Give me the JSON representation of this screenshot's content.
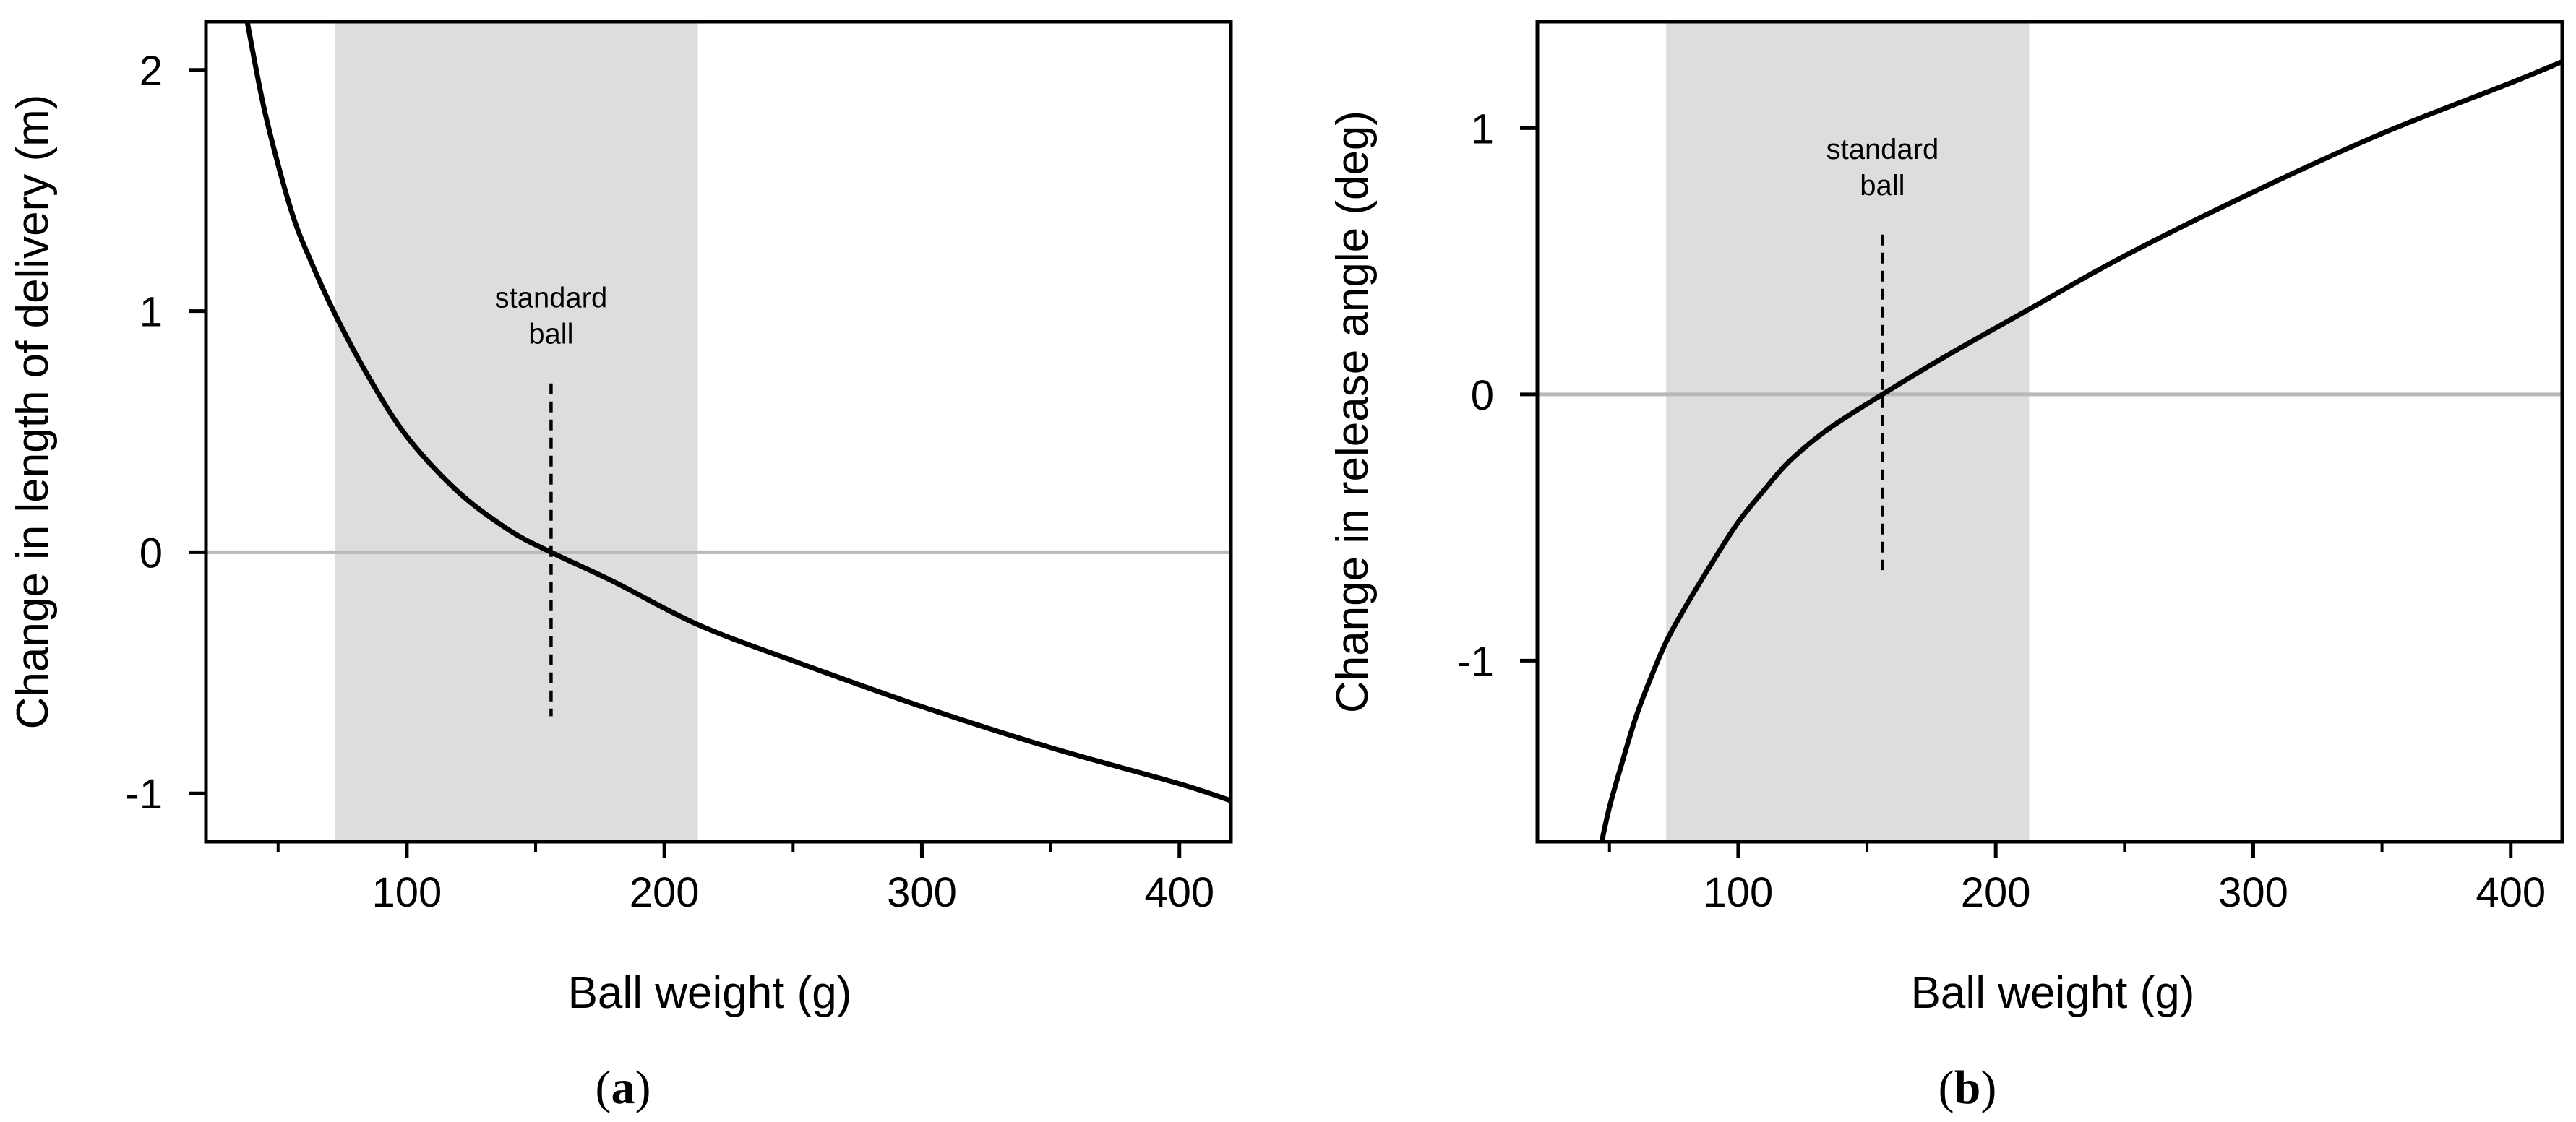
{
  "chart_data": [
    {
      "type": "line",
      "panel_label": "(a)",
      "panel_letter": "a",
      "xlabel": "Ball weight (g)",
      "ylabel": "Change in length of delivery (m)",
      "xlim": [
        22,
        420
      ],
      "ylim": [
        -1.2,
        2.2
      ],
      "xticks": [
        100,
        200,
        300,
        400
      ],
      "xminor": [
        50,
        150,
        250,
        350
      ],
      "yticks": [
        -1,
        0,
        1,
        2
      ],
      "shaded_range": [
        72,
        213
      ],
      "reference_line_y": 0,
      "annotation": {
        "lines": [
          "standard",
          "ball"
        ],
        "x": 156,
        "dash_from": 0.7,
        "dash_to": -0.68
      },
      "grid": false,
      "series": [
        {
          "x": [
            38,
            45,
            55,
            63,
            72,
            85,
            100,
            120,
            140,
            156,
            180,
            213,
            250,
            300,
            350,
            400,
            420
          ],
          "y": [
            2.2,
            1.82,
            1.42,
            1.2,
            0.99,
            0.73,
            0.48,
            0.25,
            0.09,
            0.0,
            -0.12,
            -0.3,
            -0.45,
            -0.64,
            -0.81,
            -0.96,
            -1.03
          ]
        }
      ]
    },
    {
      "type": "line",
      "panel_label": "(b)",
      "panel_letter": "b",
      "xlabel": "Ball weight (g)",
      "ylabel": "Change in release angle (deg)",
      "xlim": [
        22,
        420
      ],
      "ylim": [
        -1.68,
        1.4
      ],
      "xticks": [
        100,
        200,
        300,
        400
      ],
      "xminor": [
        50,
        150,
        250,
        350
      ],
      "yticks": [
        -1,
        0,
        1
      ],
      "shaded_range": [
        72,
        213
      ],
      "reference_line_y": 0,
      "annotation": {
        "lines": [
          "standard",
          "ball"
        ],
        "x": 156,
        "dash_from": 0.6,
        "dash_to": -0.66
      },
      "grid": false,
      "series": [
        {
          "x": [
            47,
            50,
            55,
            60,
            65,
            72,
            80,
            90,
            100,
            110,
            120,
            135,
            156,
            180,
            213,
            250,
            300,
            350,
            400,
            420
          ],
          "y": [
            -1.68,
            -1.55,
            -1.38,
            -1.22,
            -1.09,
            -0.93,
            -0.79,
            -0.63,
            -0.48,
            -0.36,
            -0.25,
            -0.13,
            0.0,
            0.14,
            0.32,
            0.52,
            0.76,
            0.98,
            1.17,
            1.25
          ]
        }
      ]
    }
  ]
}
